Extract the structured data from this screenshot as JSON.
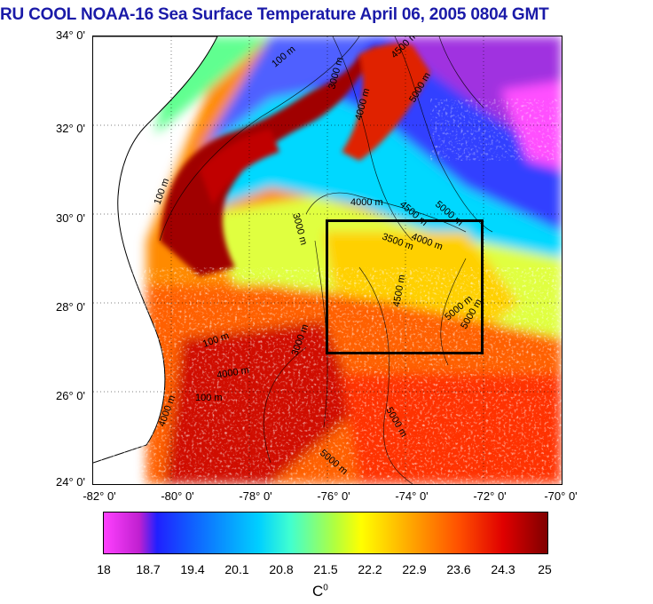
{
  "title": "RU COOL  NOAA-16 Sea Surface Temperature April 06, 2005 0804 GMT",
  "y_labels": [
    "34° 0'",
    "32° 0'",
    "30° 0'",
    "28° 0'",
    "26° 0'",
    "24° 0'"
  ],
  "x_labels": [
    "-82° 0'",
    "-80° 0'",
    "-78° 0'",
    "-76° 0'",
    "-74° 0'",
    "-72° 0'",
    "-70° 0'"
  ],
  "colorbar": {
    "ticks": [
      "18",
      "18.7",
      "19.4",
      "20.1",
      "20.8",
      "21.5",
      "22.2",
      "22.9",
      "23.6",
      "24.3",
      "25"
    ],
    "unit": "C",
    "unit_sup": "0"
  },
  "contour_labels": [
    "100 m",
    "100 m",
    "3000 m",
    "4000 m",
    "4500 m",
    "5000 m",
    "3000 m",
    "4000 m",
    "4500 m",
    "5000 m",
    "4000 m",
    "3500 m",
    "5000 m",
    "4500 m",
    "5000 m",
    "5000 m",
    "100 m",
    "4000 m",
    "3000 m",
    "100 m",
    "4000 m",
    "5000 m"
  ]
}
